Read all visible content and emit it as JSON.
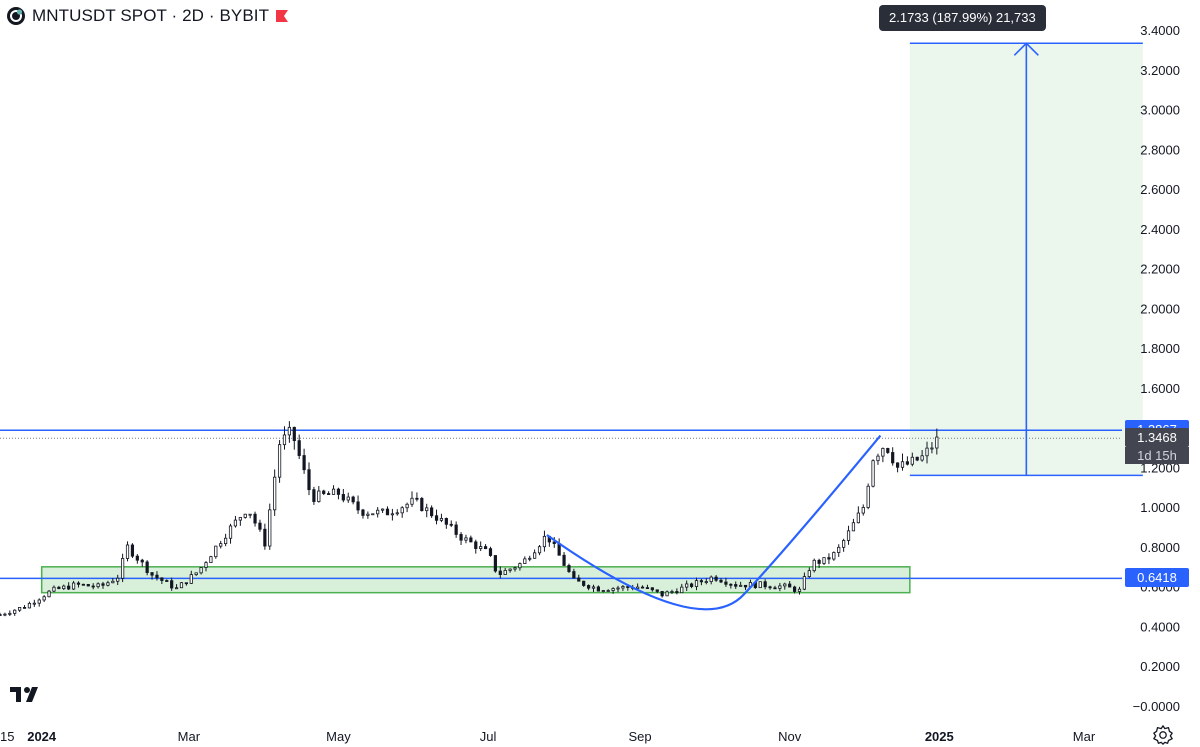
{
  "header": {
    "title": "MNTUSDT SPOT · 2D · BYBIT"
  },
  "measure": {
    "label": "2.1733 (187.99%) 21,733"
  },
  "price_tags": {
    "resistance": "1.3867",
    "current": "1.3468",
    "countdown": "1d 15h",
    "support": "0.6418"
  },
  "colors": {
    "accent_line": "#2962ff",
    "range_fill": "#e8f5e9",
    "box_border": "#4caf50",
    "candle": "#131722"
  },
  "icons": {
    "symbol_logo": "mantle-logo-icon",
    "flag": "flag-icon",
    "branding": "tradingview-logo-icon",
    "settings": "gear-icon"
  },
  "chart_data": {
    "type": "candlestick",
    "title": "MNTUSDT SPOT · 2D · BYBIT",
    "y_axis": {
      "ticks": [
        "3.4000",
        "3.2000",
        "3.0000",
        "2.8000",
        "2.6000",
        "2.4000",
        "2.2000",
        "2.0000",
        "1.8000",
        "1.6000",
        "1.4000",
        "1.2000",
        "1.0000",
        "0.8000",
        "0.6000",
        "0.4000",
        "0.2000",
        "−0.0000"
      ],
      "range": [
        -0.02,
        3.45
      ]
    },
    "x_axis": {
      "ticks": [
        "15",
        "2024",
        "Mar",
        "May",
        "Jul",
        "Sep",
        "Nov",
        "2025",
        "Mar"
      ],
      "range": [
        "2023-12-15",
        "2025-04-01"
      ]
    },
    "price_closes": [
      {
        "t": "2023-12-15",
        "v": 0.46
      },
      {
        "t": "2023-12-25",
        "v": 0.5
      },
      {
        "t": "2024-01-05",
        "v": 0.58
      },
      {
        "t": "2024-01-15",
        "v": 0.61
      },
      {
        "t": "2024-01-25",
        "v": 0.6
      },
      {
        "t": "2024-02-01",
        "v": 0.65
      },
      {
        "t": "2024-02-05",
        "v": 0.8
      },
      {
        "t": "2024-02-15",
        "v": 0.66
      },
      {
        "t": "2024-02-25",
        "v": 0.59
      },
      {
        "t": "2024-03-05",
        "v": 0.68
      },
      {
        "t": "2024-03-15",
        "v": 0.85
      },
      {
        "t": "2024-03-25",
        "v": 1.0
      },
      {
        "t": "2024-04-01",
        "v": 0.82
      },
      {
        "t": "2024-04-07",
        "v": 1.32
      },
      {
        "t": "2024-04-12",
        "v": 1.38
      },
      {
        "t": "2024-04-20",
        "v": 1.05
      },
      {
        "t": "2024-05-01",
        "v": 1.07
      },
      {
        "t": "2024-05-10",
        "v": 0.98
      },
      {
        "t": "2024-05-20",
        "v": 0.97
      },
      {
        "t": "2024-06-01",
        "v": 1.03
      },
      {
        "t": "2024-06-10",
        "v": 0.95
      },
      {
        "t": "2024-06-20",
        "v": 0.85
      },
      {
        "t": "2024-07-01",
        "v": 0.77
      },
      {
        "t": "2024-07-05",
        "v": 0.66
      },
      {
        "t": "2024-07-15",
        "v": 0.72
      },
      {
        "t": "2024-07-25",
        "v": 0.86
      },
      {
        "t": "2024-08-05",
        "v": 0.63
      },
      {
        "t": "2024-08-15",
        "v": 0.59
      },
      {
        "t": "2024-09-01",
        "v": 0.6
      },
      {
        "t": "2024-09-10",
        "v": 0.56
      },
      {
        "t": "2024-09-20",
        "v": 0.6
      },
      {
        "t": "2024-10-01",
        "v": 0.65
      },
      {
        "t": "2024-10-10",
        "v": 0.61
      },
      {
        "t": "2024-10-20",
        "v": 0.61
      },
      {
        "t": "2024-10-30",
        "v": 0.6
      },
      {
        "t": "2024-11-05",
        "v": 0.58
      },
      {
        "t": "2024-11-10",
        "v": 0.72
      },
      {
        "t": "2024-11-15",
        "v": 0.73
      },
      {
        "t": "2024-11-20",
        "v": 0.77
      },
      {
        "t": "2024-11-25",
        "v": 0.87
      },
      {
        "t": "2024-12-01",
        "v": 1.0
      },
      {
        "t": "2024-12-05",
        "v": 1.25
      },
      {
        "t": "2024-12-10",
        "v": 1.32
      },
      {
        "t": "2024-12-15",
        "v": 1.2
      },
      {
        "t": "2024-12-20",
        "v": 1.22
      },
      {
        "t": "2024-12-25",
        "v": 1.25
      },
      {
        "t": "2025-01-01",
        "v": 1.35
      }
    ],
    "levels": {
      "resistance": 1.3867,
      "current_price": 1.3468,
      "support": 0.6418,
      "target": 3.3333,
      "target_base": 1.16
    },
    "accumulation_range": {
      "from": "2024-01-01",
      "to": "2024-12-20",
      "low": 0.57,
      "high": 0.7
    },
    "projection_box": {
      "from": "2024-12-20",
      "to": "2025-03-25",
      "low": 1.16,
      "high": 3.3333
    }
  }
}
